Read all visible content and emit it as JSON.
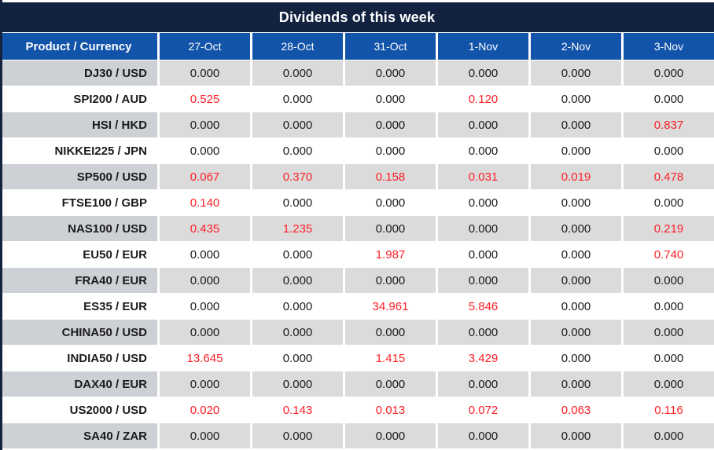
{
  "title_bar": {
    "title": "Dividends of this week"
  },
  "table": {
    "product_column_header": "Product / Currency",
    "date_headers": [
      "27-Oct",
      "28-Oct",
      "31-Oct",
      "1-Nov",
      "2-Nov",
      "3-Nov"
    ],
    "rows": [
      {
        "product": "DJ30 / USD",
        "values": [
          "0.000",
          "0.000",
          "0.000",
          "0.000",
          "0.000",
          "0.000"
        ]
      },
      {
        "product": "SPI200 / AUD",
        "values": [
          "0.525",
          "0.000",
          "0.000",
          "0.120",
          "0.000",
          "0.000"
        ]
      },
      {
        "product": "HSI / HKD",
        "values": [
          "0.000",
          "0.000",
          "0.000",
          "0.000",
          "0.000",
          "0.837"
        ]
      },
      {
        "product": "NIKKEI225 / JPN",
        "values": [
          "0.000",
          "0.000",
          "0.000",
          "0.000",
          "0.000",
          "0.000"
        ]
      },
      {
        "product": "SP500 / USD",
        "values": [
          "0.067",
          "0.370",
          "0.158",
          "0.031",
          "0.019",
          "0.478"
        ]
      },
      {
        "product": "FTSE100 / GBP",
        "values": [
          "0.140",
          "0.000",
          "0.000",
          "0.000",
          "0.000",
          "0.000"
        ]
      },
      {
        "product": "NAS100 / USD",
        "values": [
          "0.435",
          "1.235",
          "0.000",
          "0.000",
          "0.000",
          "0.219"
        ]
      },
      {
        "product": "EU50 / EUR",
        "values": [
          "0.000",
          "0.000",
          "1.987",
          "0.000",
          "0.000",
          "0.740"
        ]
      },
      {
        "product": "FRA40 / EUR",
        "values": [
          "0.000",
          "0.000",
          "0.000",
          "0.000",
          "0.000",
          "0.000"
        ]
      },
      {
        "product": "ES35 / EUR",
        "values": [
          "0.000",
          "0.000",
          "34.961",
          "5.846",
          "0.000",
          "0.000"
        ]
      },
      {
        "product": "CHINA50 / USD",
        "values": [
          "0.000",
          "0.000",
          "0.000",
          "0.000",
          "0.000",
          "0.000"
        ]
      },
      {
        "product": "INDIA50 / USD",
        "values": [
          "13.645",
          "0.000",
          "1.415",
          "3.429",
          "0.000",
          "0.000"
        ]
      },
      {
        "product": "DAX40 / EUR",
        "values": [
          "0.000",
          "0.000",
          "0.000",
          "0.000",
          "0.000",
          "0.000"
        ]
      },
      {
        "product": "US2000 / USD",
        "values": [
          "0.020",
          "0.143",
          "0.013",
          "0.072",
          "0.063",
          "0.116"
        ]
      },
      {
        "product": "SA40 / ZAR",
        "values": [
          "0.000",
          "0.000",
          "0.000",
          "0.000",
          "0.000",
          "0.000"
        ]
      }
    ]
  },
  "colors": {
    "title-navy": "#13233F",
    "header-blue": "#1254A9",
    "row-gray": "#DBDBDB",
    "label-gray": "#CDD0D5",
    "text-black": "#1A1A1A",
    "value-red": "#FD2028"
  }
}
